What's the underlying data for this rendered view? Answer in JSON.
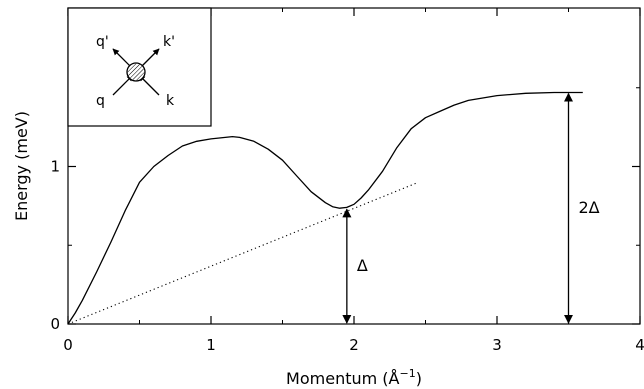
{
  "chart_data": {
    "type": "line",
    "xlabel": "Momentum (Å",
    "xlabel_sup": "−1",
    "xlabel_close": ")",
    "ylabel": "Energy (meV)",
    "xlim": [
      0,
      4
    ],
    "ylim": [
      0,
      2
    ],
    "grid": false,
    "x_ticks": [
      0,
      1,
      2,
      3,
      4
    ],
    "x_tick_labels": [
      "0",
      "1",
      "2",
      "3",
      "4"
    ],
    "y_ticks": [
      0,
      1
    ],
    "y_tick_labels": [
      "0",
      "1"
    ],
    "series": [
      {
        "style": "solid",
        "x": [
          0,
          0.05,
          0.1,
          0.2,
          0.3,
          0.4,
          0.5,
          0.6,
          0.7,
          0.8,
          0.9,
          1.0,
          1.1,
          1.15,
          1.2,
          1.3,
          1.4,
          1.5,
          1.6,
          1.7,
          1.8,
          1.85,
          1.9,
          1.95,
          2.0,
          2.05,
          2.1,
          2.2,
          2.3,
          2.4,
          2.5,
          2.6,
          2.7,
          2.8,
          3.0,
          3.2,
          3.4,
          3.6
        ],
        "y": [
          0,
          0.07,
          0.15,
          0.33,
          0.52,
          0.72,
          0.9,
          1.0,
          1.07,
          1.13,
          1.16,
          1.175,
          1.185,
          1.19,
          1.185,
          1.16,
          1.11,
          1.04,
          0.94,
          0.84,
          0.77,
          0.745,
          0.735,
          0.74,
          0.76,
          0.8,
          0.85,
          0.97,
          1.12,
          1.24,
          1.31,
          1.35,
          1.39,
          1.42,
          1.45,
          1.465,
          1.47,
          1.47
        ]
      },
      {
        "style": "dotted",
        "x": [
          0,
          2.45
        ],
        "y": [
          0,
          0.9
        ]
      }
    ],
    "annotations": [
      {
        "label": "Δ",
        "x": 1.95,
        "y_from": 0,
        "y_to": 0.735
      },
      {
        "label": "2Δ",
        "x": 3.5,
        "y_from": 0,
        "y_to": 1.47
      }
    ],
    "inset": {
      "position": "top-left",
      "labels": [
        "q'",
        "k'",
        "q",
        "k"
      ]
    }
  }
}
